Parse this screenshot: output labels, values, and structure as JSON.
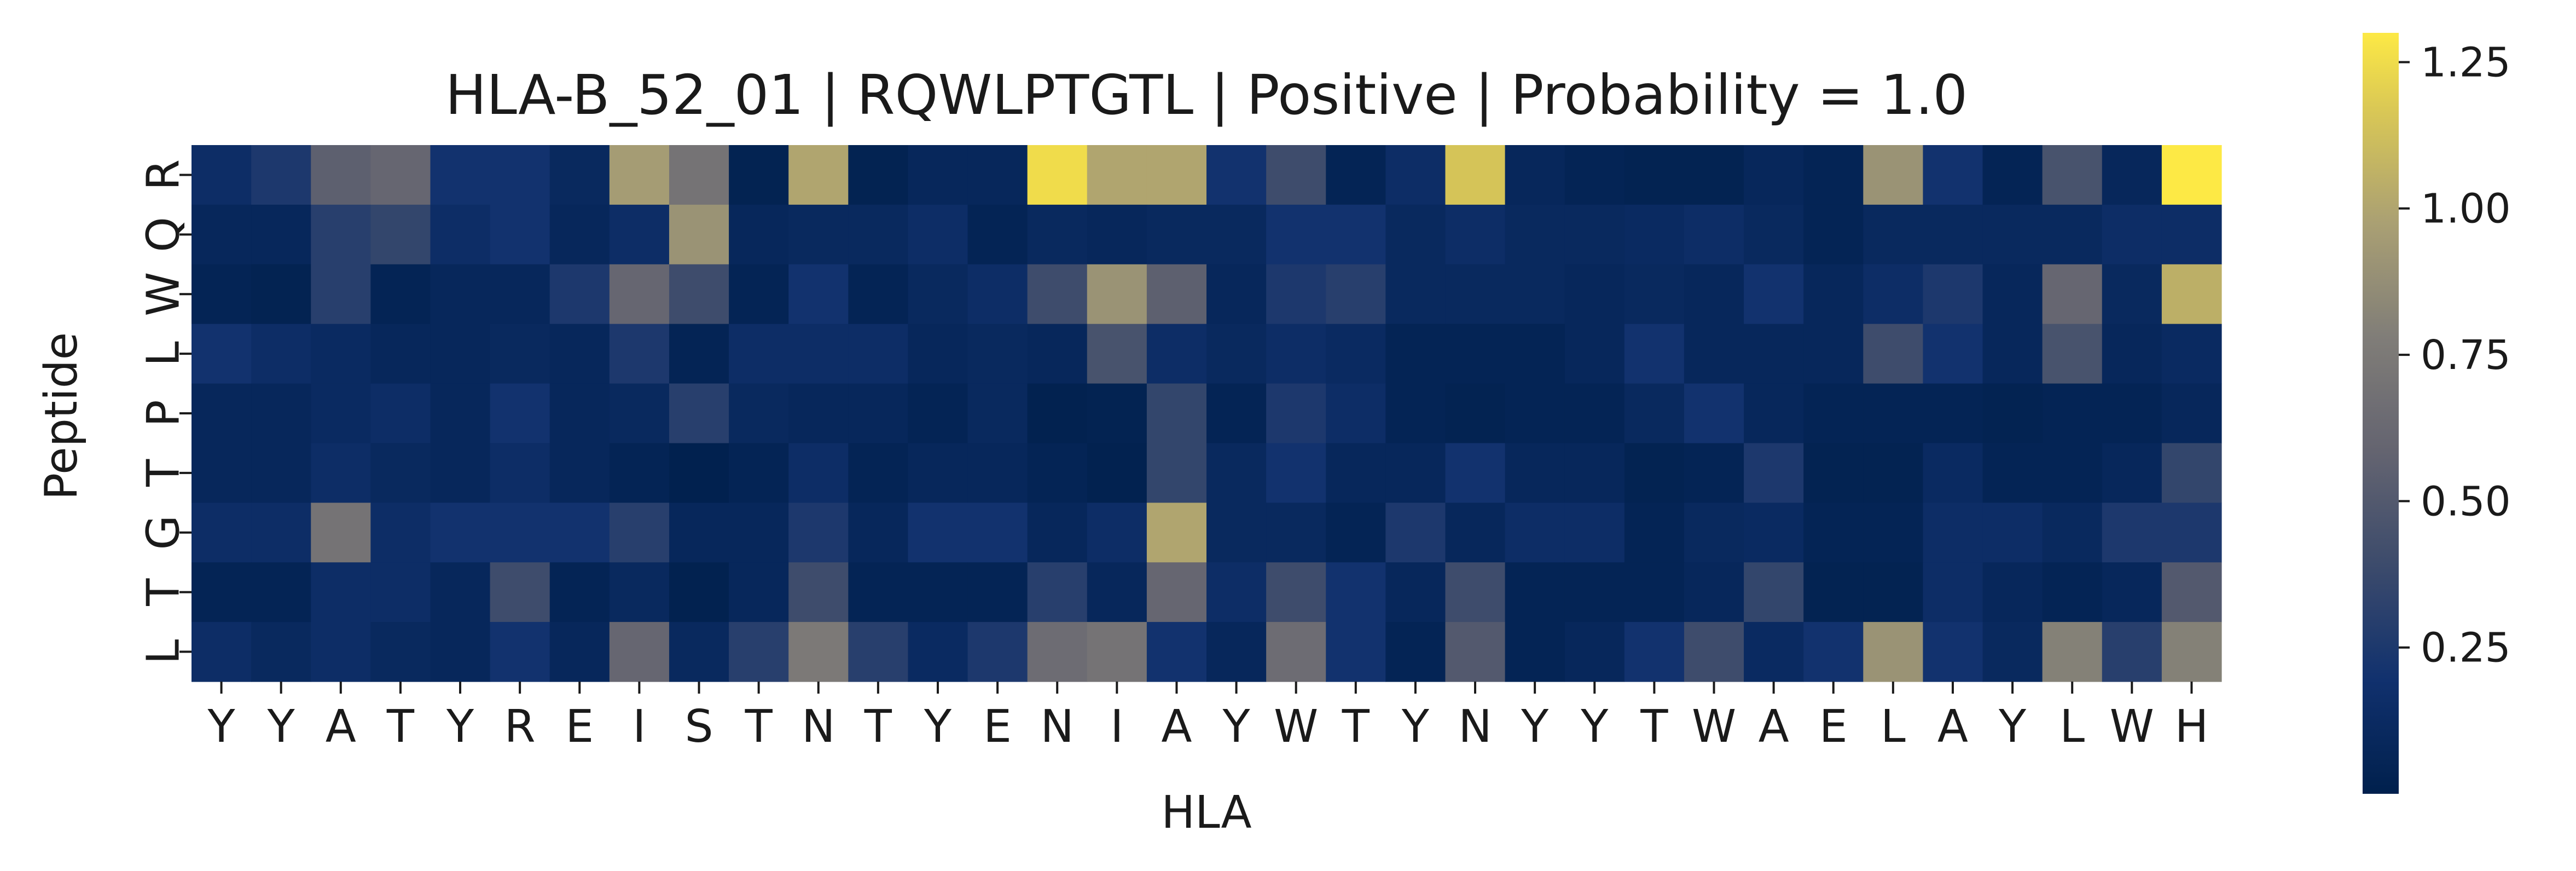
{
  "chart_data": {
    "type": "heatmap",
    "title": "HLA-B_52_01 | RQWLPTGTL | Positive | Probability = 1.0",
    "xlabel": "HLA",
    "ylabel": "Peptide",
    "x_categories": [
      "Y",
      "Y",
      "A",
      "T",
      "Y",
      "R",
      "E",
      "I",
      "S",
      "T",
      "N",
      "T",
      "Y",
      "E",
      "N",
      "I",
      "A",
      "Y",
      "W",
      "T",
      "Y",
      "N",
      "Y",
      "Y",
      "T",
      "W",
      "A",
      "E",
      "L",
      "A",
      "Y",
      "L",
      "W",
      "H"
    ],
    "y_categories": [
      "R",
      "Q",
      "W",
      "L",
      "P",
      "T",
      "G",
      "T",
      "L"
    ],
    "values": [
      [
        0.15,
        0.25,
        0.55,
        0.6,
        0.2,
        0.2,
        0.1,
        0.95,
        0.7,
        0.03,
        1.0,
        0.03,
        0.08,
        0.08,
        1.25,
        1.0,
        1.0,
        0.2,
        0.4,
        0.05,
        0.15,
        1.15,
        0.08,
        0.05,
        0.03,
        0.03,
        0.08,
        0.05,
        0.9,
        0.2,
        0.05,
        0.45,
        0.08,
        1.3
      ],
      [
        0.08,
        0.08,
        0.3,
        0.35,
        0.15,
        0.2,
        0.08,
        0.15,
        0.9,
        0.08,
        0.1,
        0.1,
        0.15,
        0.05,
        0.1,
        0.08,
        0.1,
        0.1,
        0.2,
        0.2,
        0.1,
        0.15,
        0.1,
        0.1,
        0.12,
        0.15,
        0.1,
        0.05,
        0.1,
        0.1,
        0.1,
        0.1,
        0.15,
        0.15
      ],
      [
        0.05,
        0.03,
        0.3,
        0.05,
        0.08,
        0.08,
        0.25,
        0.6,
        0.4,
        0.05,
        0.2,
        0.05,
        0.1,
        0.15,
        0.4,
        0.9,
        0.55,
        0.08,
        0.25,
        0.3,
        0.1,
        0.1,
        0.1,
        0.08,
        0.1,
        0.08,
        0.2,
        0.08,
        0.15,
        0.25,
        0.08,
        0.6,
        0.1,
        1.05
      ],
      [
        0.2,
        0.15,
        0.12,
        0.08,
        0.08,
        0.1,
        0.08,
        0.25,
        0.05,
        0.15,
        0.15,
        0.15,
        0.08,
        0.1,
        0.08,
        0.45,
        0.15,
        0.1,
        0.15,
        0.12,
        0.05,
        0.05,
        0.05,
        0.08,
        0.2,
        0.08,
        0.08,
        0.08,
        0.4,
        0.2,
        0.08,
        0.45,
        0.08,
        0.12
      ],
      [
        0.08,
        0.08,
        0.12,
        0.15,
        0.08,
        0.2,
        0.08,
        0.1,
        0.3,
        0.1,
        0.08,
        0.08,
        0.05,
        0.1,
        0.02,
        0.03,
        0.35,
        0.05,
        0.25,
        0.15,
        0.05,
        0.03,
        0.05,
        0.05,
        0.1,
        0.2,
        0.08,
        0.05,
        0.05,
        0.05,
        0.03,
        0.05,
        0.05,
        0.08
      ],
      [
        0.08,
        0.08,
        0.15,
        0.1,
        0.08,
        0.15,
        0.08,
        0.05,
        0.01,
        0.05,
        0.15,
        0.05,
        0.08,
        0.08,
        0.05,
        0.02,
        0.35,
        0.1,
        0.2,
        0.08,
        0.08,
        0.2,
        0.08,
        0.08,
        0.03,
        0.05,
        0.25,
        0.03,
        0.03,
        0.12,
        0.05,
        0.05,
        0.08,
        0.35
      ],
      [
        0.15,
        0.15,
        0.7,
        0.15,
        0.2,
        0.2,
        0.2,
        0.3,
        0.08,
        0.08,
        0.25,
        0.08,
        0.2,
        0.2,
        0.08,
        0.15,
        1.0,
        0.1,
        0.1,
        0.05,
        0.25,
        0.08,
        0.15,
        0.15,
        0.05,
        0.1,
        0.12,
        0.05,
        0.05,
        0.15,
        0.15,
        0.1,
        0.25,
        0.25
      ],
      [
        0.05,
        0.05,
        0.15,
        0.15,
        0.08,
        0.4,
        0.05,
        0.1,
        0.02,
        0.08,
        0.4,
        0.05,
        0.05,
        0.05,
        0.3,
        0.08,
        0.6,
        0.15,
        0.4,
        0.2,
        0.08,
        0.4,
        0.05,
        0.05,
        0.05,
        0.08,
        0.35,
        0.03,
        0.03,
        0.15,
        0.08,
        0.05,
        0.08,
        0.5
      ],
      [
        0.15,
        0.1,
        0.15,
        0.1,
        0.08,
        0.2,
        0.08,
        0.6,
        0.1,
        0.3,
        0.75,
        0.3,
        0.12,
        0.25,
        0.65,
        0.7,
        0.2,
        0.08,
        0.65,
        0.2,
        0.05,
        0.5,
        0.05,
        0.08,
        0.2,
        0.4,
        0.12,
        0.2,
        0.9,
        0.2,
        0.1,
        0.8,
        0.3,
        0.8
      ]
    ],
    "colormap": "cividis",
    "colorbar": {
      "vmin": 0.0,
      "vmax": 1.3,
      "ticks": [
        0.25,
        0.5,
        0.75,
        1.0,
        1.25
      ],
      "tick_labels": [
        "0.25",
        "0.50",
        "0.75",
        "1.00",
        "1.25"
      ]
    },
    "grid": false,
    "legend": "colorbar-right"
  }
}
